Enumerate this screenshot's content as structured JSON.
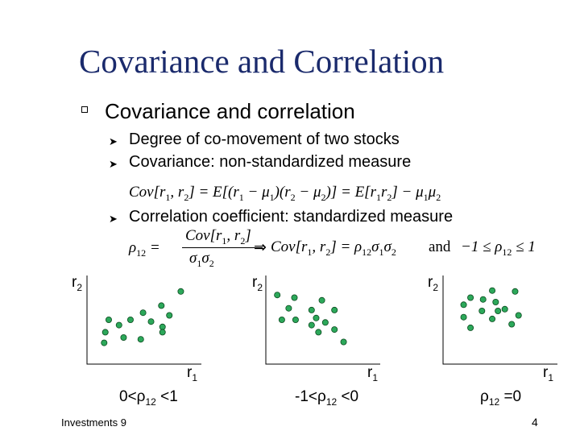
{
  "title": "Covariance and Correlation",
  "bullet": "Covariance and correlation",
  "sub_items": [
    "Degree of co-movement of two stocks",
    "Covariance: non-standardized measure",
    "Correlation coefficient: standardized measure"
  ],
  "equations": {
    "cov_def": "Cov[r1, r2] = E[(r1 − μ1)(r2 − μ2)] = E[r1r2] − μ1μ2",
    "rho_def": "ρ12 = Cov[r1, r2] / σ1σ2 ⇒ Cov[r1, r2] = ρ12σ1σ2 and −1 ≤ ρ12 ≤ 1"
  },
  "plots": [
    {
      "y_label": "r2",
      "x_label": "r1",
      "caption": "0<ρ12 <1",
      "points": [
        [
          0.82,
          0.82
        ],
        [
          0.65,
          0.66
        ],
        [
          0.49,
          0.58
        ],
        [
          0.72,
          0.55
        ],
        [
          0.19,
          0.5
        ],
        [
          0.38,
          0.5
        ],
        [
          0.56,
          0.48
        ],
        [
          0.28,
          0.44
        ],
        [
          0.66,
          0.42
        ],
        [
          0.16,
          0.36
        ],
        [
          0.66,
          0.36
        ],
        [
          0.32,
          0.3
        ],
        [
          0.47,
          0.28
        ],
        [
          0.15,
          0.24
        ]
      ]
    },
    {
      "y_label": "r2",
      "x_label": "r1",
      "caption": "-1<ρ12 <0",
      "points": [
        [
          0.1,
          0.78
        ],
        [
          0.25,
          0.75
        ],
        [
          0.49,
          0.72
        ],
        [
          0.2,
          0.63
        ],
        [
          0.4,
          0.61
        ],
        [
          0.6,
          0.61
        ],
        [
          0.44,
          0.52
        ],
        [
          0.14,
          0.5
        ],
        [
          0.26,
          0.5
        ],
        [
          0.52,
          0.47
        ],
        [
          0.4,
          0.44
        ],
        [
          0.6,
          0.39
        ],
        [
          0.46,
          0.36
        ],
        [
          0.68,
          0.25
        ]
      ]
    },
    {
      "y_label": "r2",
      "x_label": "r1",
      "caption": "ρ12 =0",
      "points": [
        [
          0.43,
          0.83
        ],
        [
          0.63,
          0.82
        ],
        [
          0.24,
          0.75
        ],
        [
          0.35,
          0.73
        ],
        [
          0.46,
          0.7
        ],
        [
          0.18,
          0.67
        ],
        [
          0.54,
          0.62
        ],
        [
          0.34,
          0.6
        ],
        [
          0.48,
          0.6
        ],
        [
          0.66,
          0.55
        ],
        [
          0.18,
          0.53
        ],
        [
          0.43,
          0.51
        ],
        [
          0.6,
          0.45
        ],
        [
          0.24,
          0.41
        ]
      ]
    }
  ],
  "footer": "Investments 9",
  "page_number": "4"
}
